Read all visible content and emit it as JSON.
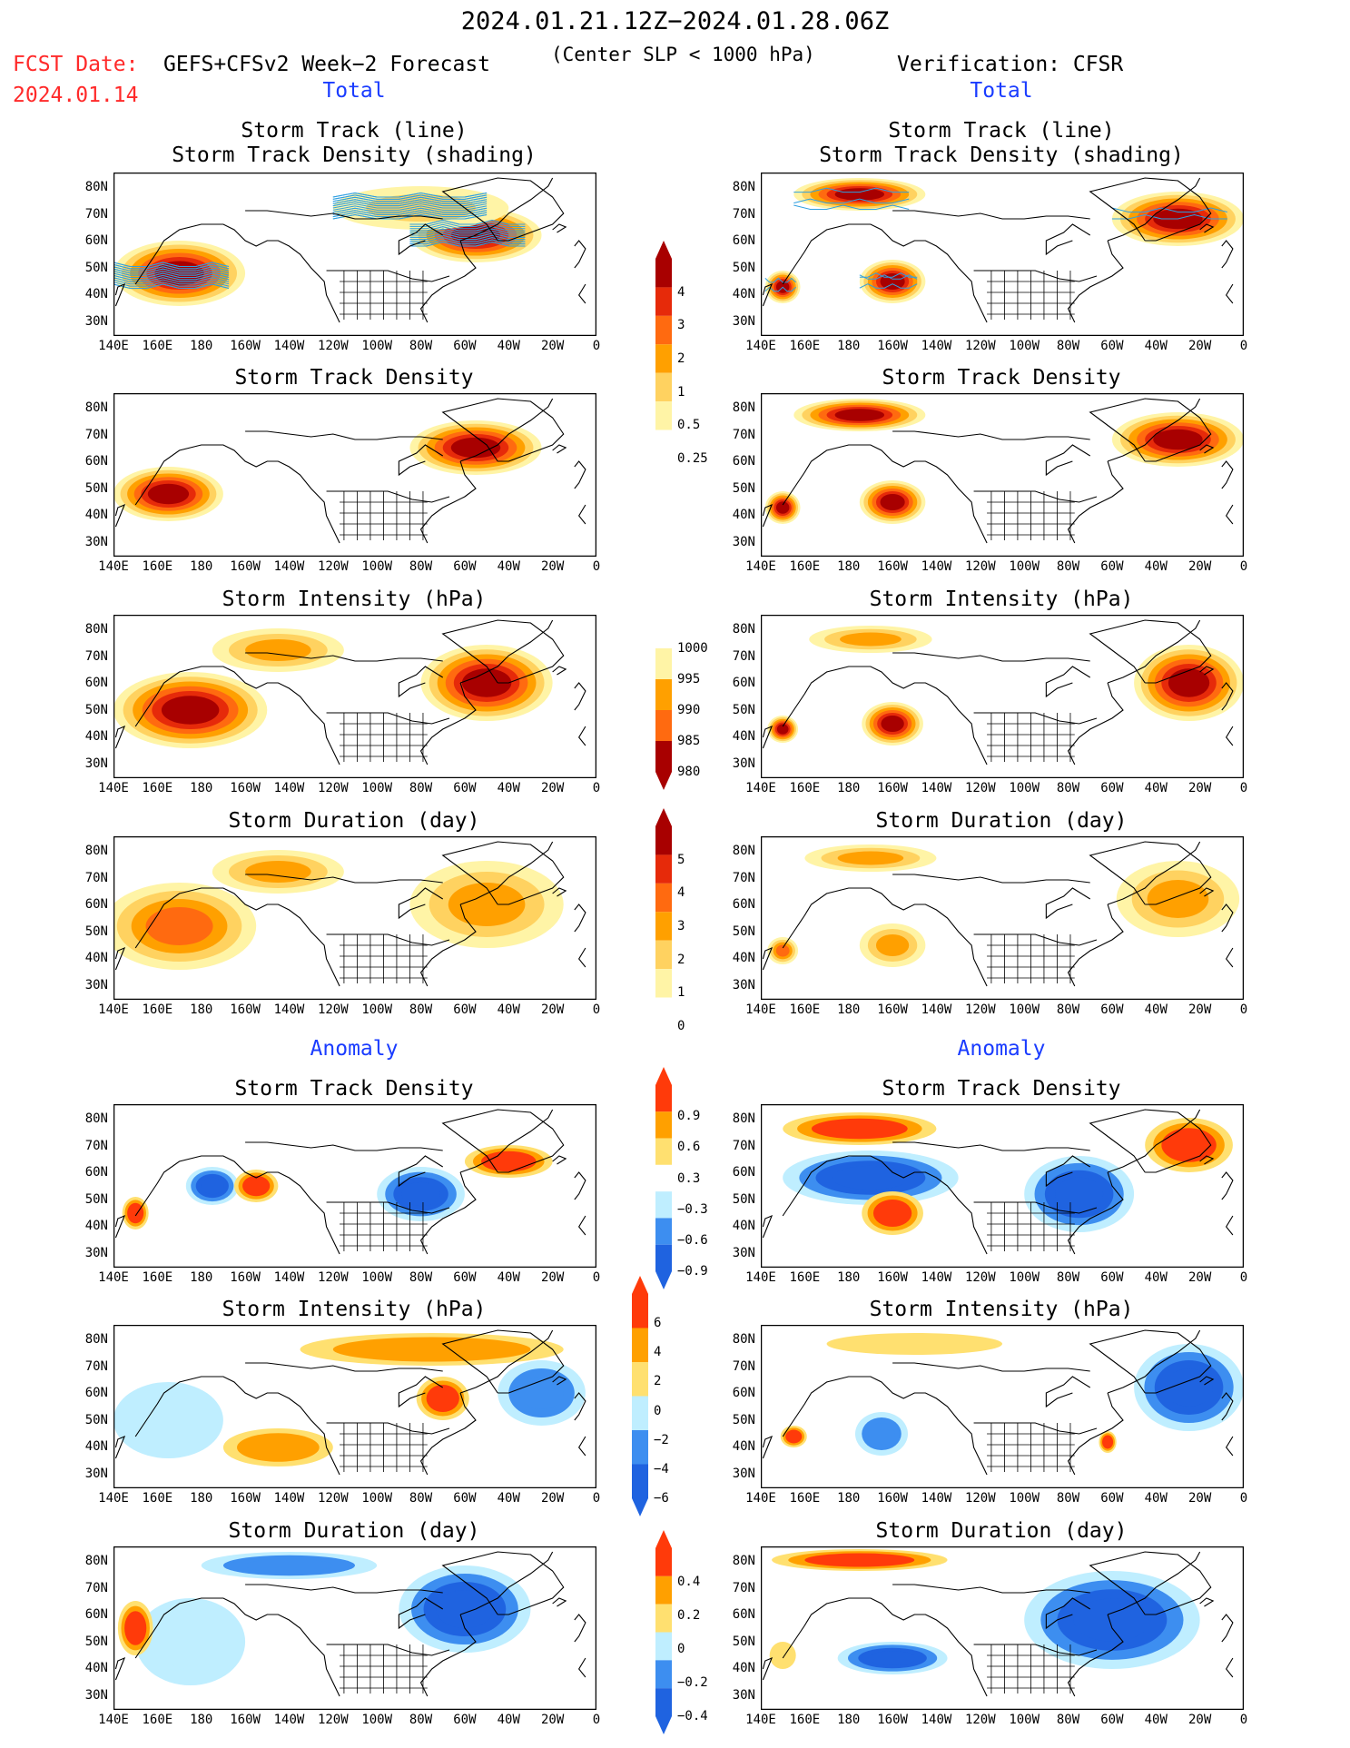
{
  "header": {
    "title": "2024.01.21.12Z−2024.01.28.06Z",
    "fcst_label": "FCST Date:",
    "fcst_model": "GEFS+CFSv2 Week−2 Forecast",
    "fcst_slp": "(Center SLP < 1000 hPa)",
    "fcst_date": "2024.01.14",
    "verification": "Verification: CFSR"
  },
  "sections": {
    "total": "Total",
    "anomaly": "Anomaly"
  },
  "panel_titles": {
    "track_line": "Storm Track (line)",
    "track_shading": "Storm Track Density (shading)",
    "density": "Storm Track Density",
    "intensity": "Storm Intensity (hPa)",
    "duration": "Storm Duration (day)"
  },
  "axes": {
    "lat_labels": [
      "80N",
      "70N",
      "60N",
      "50N",
      "40N",
      "30N"
    ],
    "lon_labels": [
      "140E",
      "160E",
      "180",
      "160W",
      "140W",
      "120W",
      "100W",
      "80W",
      "60W",
      "40W",
      "20W",
      "0"
    ]
  },
  "colors": {
    "map_line": "#000000",
    "track_line": "#2f9fe0",
    "seq": [
      "#fff4a6",
      "#ffd260",
      "#ffa000",
      "#ff6a10",
      "#e62a0a",
      "#a80000"
    ],
    "div": [
      "#1f63e0",
      "#3d8ef0",
      "#bfeeff",
      "#ffffff",
      "#ffe070",
      "#ffa000",
      "#ff3a0a"
    ]
  },
  "colorbars": {
    "density_total": {
      "labels": [
        "4",
        "3",
        "2",
        "1",
        "0.5",
        "0.25"
      ]
    },
    "intensity_total": {
      "labels": [
        "1000",
        "995",
        "990",
        "985",
        "980"
      ]
    },
    "duration_total": {
      "labels": [
        "5",
        "4",
        "3",
        "2",
        "1",
        "0"
      ]
    },
    "density_anom": {
      "labels": [
        "0.9",
        "0.6",
        "0.3",
        "−0.3",
        "−0.6",
        "−0.9"
      ]
    },
    "intensity_anom": {
      "labels": [
        "6",
        "4",
        "2",
        "0",
        "−2",
        "−4",
        "−6"
      ]
    },
    "duration_anom": {
      "labels": [
        "0.4",
        "0.2",
        "0",
        "−0.2",
        "−0.4"
      ]
    }
  },
  "chart_data": {
    "type": "heatmap",
    "title": "2024.01.21.12Z−2024.01.28.06Z",
    "ylim": [
      25,
      85
    ],
    "xlim": [
      140,
      360
    ],
    "panels": [
      {
        "column": "GEFS+CFSv2 Week−2 Forecast",
        "row": "Total",
        "field": "Storm Track (line) / Storm Track Density (shading)",
        "blobs": [
          {
            "lon": 170,
            "lat": 48,
            "level": 5,
            "rx": 30,
            "ry": 12
          },
          {
            "lon": 305,
            "lat": 62,
            "level": 5,
            "rx": 30,
            "ry": 10
          },
          {
            "lon": 280,
            "lat": 72,
            "level": 1,
            "rx": 40,
            "ry": 8
          }
        ]
      },
      {
        "column": "Verification: CFSR",
        "row": "Total",
        "field": "Storm Track (line) / Storm Track Density (shading)",
        "blobs": [
          {
            "lon": 185,
            "lat": 77,
            "level": 5,
            "rx": 30,
            "ry": 6
          },
          {
            "lon": 200,
            "lat": 45,
            "level": 5,
            "rx": 15,
            "ry": 8
          },
          {
            "lon": 150,
            "lat": 43,
            "level": 5,
            "rx": 8,
            "ry": 6
          },
          {
            "lon": 330,
            "lat": 68,
            "level": 5,
            "rx": 30,
            "ry": 10
          }
        ]
      },
      {
        "column": "GEFS+CFSv2 Week−2 Forecast",
        "row": "Total",
        "field": "Storm Track Density",
        "blobs": [
          {
            "lon": 165,
            "lat": 48,
            "level": 5,
            "rx": 25,
            "ry": 10
          },
          {
            "lon": 305,
            "lat": 65,
            "level": 5,
            "rx": 30,
            "ry": 10
          }
        ]
      },
      {
        "column": "Verification: CFSR",
        "row": "Total",
        "field": "Storm Track Density",
        "blobs": [
          {
            "lon": 185,
            "lat": 77,
            "level": 5,
            "rx": 30,
            "ry": 6
          },
          {
            "lon": 200,
            "lat": 45,
            "level": 5,
            "rx": 15,
            "ry": 8
          },
          {
            "lon": 150,
            "lat": 43,
            "level": 5,
            "rx": 8,
            "ry": 6
          },
          {
            "lon": 330,
            "lat": 68,
            "level": 5,
            "rx": 30,
            "ry": 10
          }
        ]
      },
      {
        "column": "GEFS+CFSv2 Week−2 Forecast",
        "row": "Total",
        "field": "Storm Intensity (hPa)",
        "blobs": [
          {
            "lon": 175,
            "lat": 50,
            "level": 5,
            "rx": 35,
            "ry": 14
          },
          {
            "lon": 310,
            "lat": 60,
            "level": 5,
            "rx": 30,
            "ry": 14
          },
          {
            "lon": 215,
            "lat": 72,
            "level": 2,
            "rx": 30,
            "ry": 8
          }
        ]
      },
      {
        "column": "Verification: CFSR",
        "row": "Total",
        "field": "Storm Intensity (hPa)",
        "blobs": [
          {
            "lon": 200,
            "lat": 45,
            "level": 5,
            "rx": 14,
            "ry": 8
          },
          {
            "lon": 150,
            "lat": 43,
            "level": 5,
            "rx": 7,
            "ry": 5
          },
          {
            "lon": 335,
            "lat": 60,
            "level": 5,
            "rx": 25,
            "ry": 14
          },
          {
            "lon": 190,
            "lat": 76,
            "level": 2,
            "rx": 28,
            "ry": 5
          }
        ]
      },
      {
        "column": "GEFS+CFSv2 Week−2 Forecast",
        "row": "Total",
        "field": "Storm Duration (day)",
        "blobs": [
          {
            "lon": 170,
            "lat": 52,
            "level": 3,
            "rx": 35,
            "ry": 16
          },
          {
            "lon": 310,
            "lat": 60,
            "level": 2,
            "rx": 35,
            "ry": 16
          },
          {
            "lon": 215,
            "lat": 72,
            "level": 2,
            "rx": 30,
            "ry": 8
          }
        ]
      },
      {
        "column": "Verification: CFSR",
        "row": "Total",
        "field": "Storm Duration (day)",
        "blobs": [
          {
            "lon": 200,
            "lat": 45,
            "level": 2,
            "rx": 15,
            "ry": 8
          },
          {
            "lon": 150,
            "lat": 43,
            "level": 3,
            "rx": 7,
            "ry": 5
          },
          {
            "lon": 330,
            "lat": 62,
            "level": 2,
            "rx": 28,
            "ry": 14
          },
          {
            "lon": 190,
            "lat": 77,
            "level": 2,
            "rx": 30,
            "ry": 5
          }
        ]
      },
      {
        "column": "GEFS+CFSv2 Week−2 Forecast",
        "row": "Anomaly",
        "field": "Storm Track Density",
        "blobs": [
          {
            "lon": 185,
            "lat": 55,
            "level": 0,
            "rx": 12,
            "ry": 7
          },
          {
            "lon": 280,
            "lat": 52,
            "level": 0,
            "rx": 20,
            "ry": 10
          },
          {
            "lon": 320,
            "lat": 64,
            "level": 6,
            "rx": 20,
            "ry": 6
          },
          {
            "lon": 205,
            "lat": 55,
            "level": 6,
            "rx": 10,
            "ry": 6
          },
          {
            "lon": 150,
            "lat": 45,
            "level": 6,
            "rx": 6,
            "ry": 6
          }
        ]
      },
      {
        "column": "Verification: CFSR",
        "row": "Anomaly",
        "field": "Storm Track Density",
        "blobs": [
          {
            "lon": 185,
            "lat": 76,
            "level": 6,
            "rx": 35,
            "ry": 6
          },
          {
            "lon": 335,
            "lat": 70,
            "level": 6,
            "rx": 20,
            "ry": 10
          },
          {
            "lon": 190,
            "lat": 58,
            "level": 0,
            "rx": 40,
            "ry": 10
          },
          {
            "lon": 285,
            "lat": 52,
            "level": 0,
            "rx": 25,
            "ry": 14
          },
          {
            "lon": 200,
            "lat": 45,
            "level": 6,
            "rx": 14,
            "ry": 8
          }
        ]
      },
      {
        "column": "GEFS+CFSv2 Week−2 Forecast",
        "row": "Anomaly",
        "field": "Storm Intensity (hPa)",
        "blobs": [
          {
            "lon": 285,
            "lat": 76,
            "level": 5,
            "rx": 60,
            "ry": 6
          },
          {
            "lon": 290,
            "lat": 58,
            "level": 6,
            "rx": 12,
            "ry": 8
          },
          {
            "lon": 335,
            "lat": 60,
            "level": 1,
            "rx": 20,
            "ry": 12
          },
          {
            "lon": 165,
            "lat": 50,
            "level": 2,
            "rx": 25,
            "ry": 14
          },
          {
            "lon": 215,
            "lat": 40,
            "level": 5,
            "rx": 25,
            "ry": 7
          }
        ]
      },
      {
        "column": "Verification: CFSR",
        "row": "Anomaly",
        "field": "Storm Intensity (hPa)",
        "blobs": [
          {
            "lon": 335,
            "lat": 62,
            "level": 0,
            "rx": 25,
            "ry": 16
          },
          {
            "lon": 210,
            "lat": 78,
            "level": 4,
            "rx": 40,
            "ry": 4
          },
          {
            "lon": 155,
            "lat": 44,
            "level": 6,
            "rx": 6,
            "ry": 4
          },
          {
            "lon": 195,
            "lat": 45,
            "level": 1,
            "rx": 12,
            "ry": 8
          },
          {
            "lon": 298,
            "lat": 42,
            "level": 6,
            "rx": 4,
            "ry": 4
          }
        ]
      },
      {
        "column": "GEFS+CFSv2 Week−2 Forecast",
        "row": "Anomaly",
        "field": "Storm Duration (day)",
        "blobs": [
          {
            "lon": 300,
            "lat": 62,
            "level": 0,
            "rx": 30,
            "ry": 16
          },
          {
            "lon": 175,
            "lat": 50,
            "level": 2,
            "rx": 25,
            "ry": 16
          },
          {
            "lon": 150,
            "lat": 55,
            "level": 6,
            "rx": 8,
            "ry": 10
          },
          {
            "lon": 220,
            "lat": 78,
            "level": 1,
            "rx": 40,
            "ry": 5
          }
        ]
      },
      {
        "column": "Verification: CFSR",
        "row": "Anomaly",
        "field": "Storm Duration (day)",
        "blobs": [
          {
            "lon": 185,
            "lat": 80,
            "level": 6,
            "rx": 40,
            "ry": 4
          },
          {
            "lon": 300,
            "lat": 58,
            "level": 0,
            "rx": 40,
            "ry": 18
          },
          {
            "lon": 200,
            "lat": 44,
            "level": 0,
            "rx": 25,
            "ry": 6
          },
          {
            "lon": 150,
            "lat": 45,
            "level": 4,
            "rx": 6,
            "ry": 5
          }
        ]
      }
    ]
  }
}
